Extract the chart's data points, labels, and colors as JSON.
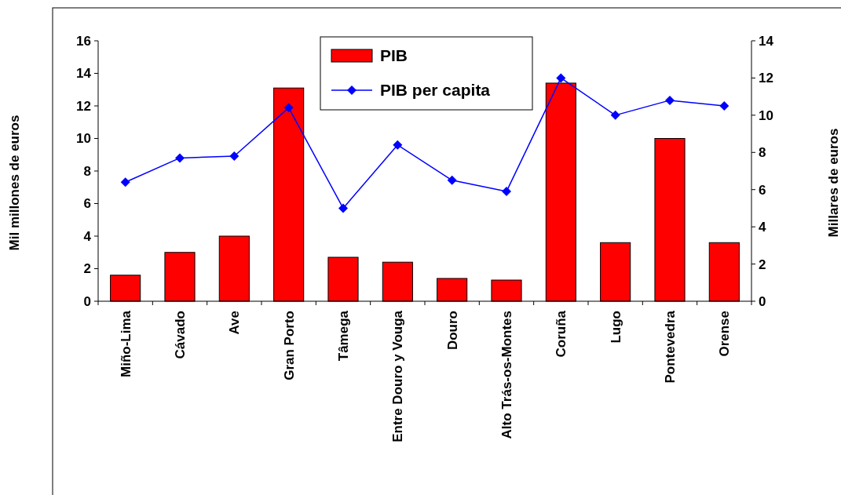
{
  "chart_data": {
    "type": "bar",
    "xlabel": null,
    "ylabel": "Mil millones de euros",
    "y2label": "Millares de euros",
    "categories": [
      "Miño-Lima",
      "Cávado",
      "Ave",
      "Gran Porto",
      "Tâmega",
      "Entre Douro y Vouga",
      "Douro",
      "Alto Trás-os-Montes",
      "Coruña",
      "Lugo",
      "Pontevedra",
      "Orense"
    ],
    "series": [
      {
        "name": "PIB",
        "color": "#ff0000",
        "values": [
          1.6,
          3.0,
          4.0,
          13.1,
          2.7,
          2.4,
          1.4,
          1.3,
          13.4,
          3.6,
          10.0,
          3.6
        ]
      },
      {
        "name": "PIB per capita",
        "type": "line",
        "axis": "y2",
        "color": "#0000ff",
        "marker": "diamond",
        "values": [
          6.4,
          7.7,
          7.8,
          10.4,
          5.0,
          8.4,
          6.5,
          5.9,
          12.0,
          10.0,
          10.8,
          10.5
        ]
      }
    ],
    "ylim": [
      0,
      16
    ],
    "yticks": [
      0,
      2,
      4,
      6,
      8,
      10,
      12,
      14,
      16
    ],
    "y2lim": [
      0,
      14
    ],
    "y2ticks": [
      0,
      2,
      4,
      6,
      8,
      10,
      12,
      14
    ],
    "legend": "top",
    "grid": false
  }
}
